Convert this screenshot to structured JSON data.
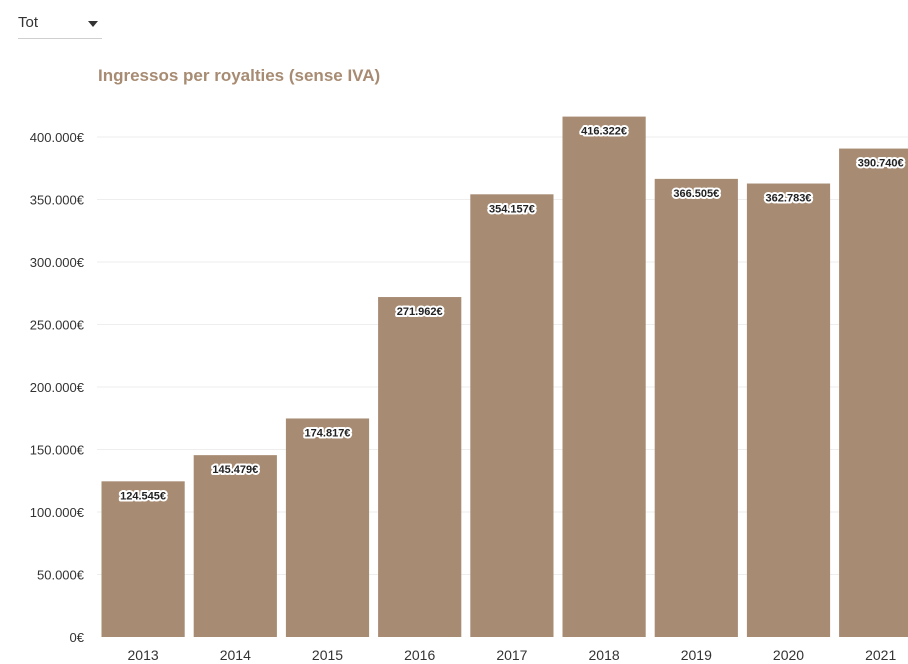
{
  "filter": {
    "selected": "Tot"
  },
  "colors": {
    "bar": "#a78b72",
    "title": "#a78b72",
    "grid": "#eeeeee",
    "label_bg": "#ffffff",
    "label_text": "#222222",
    "axis_text": "#333333"
  },
  "chart_data": {
    "type": "bar",
    "title": "Ingressos per royalties (sense IVA)",
    "xlabel": "",
    "ylabel": "",
    "categories": [
      "2013",
      "2014",
      "2015",
      "2016",
      "2017",
      "2018",
      "2019",
      "2020",
      "2021"
    ],
    "values": [
      124545,
      145479,
      174817,
      271962,
      354157,
      416322,
      366505,
      362783,
      390740
    ],
    "data_labels": [
      "124.545€",
      "145.479€",
      "174.817€",
      "271.962€",
      "354.157€",
      "416.322€",
      "366.505€",
      "362.783€",
      "390.740€"
    ],
    "yticks": [
      0,
      50000,
      100000,
      150000,
      200000,
      250000,
      300000,
      350000,
      400000
    ],
    "ytick_labels": [
      "0€",
      "50.000€",
      "100.000€",
      "150.000€",
      "200.000€",
      "250.000€",
      "300.000€",
      "350.000€",
      "400.000€"
    ],
    "ylim": [
      0,
      420000
    ],
    "grid": true,
    "legend": "none"
  }
}
